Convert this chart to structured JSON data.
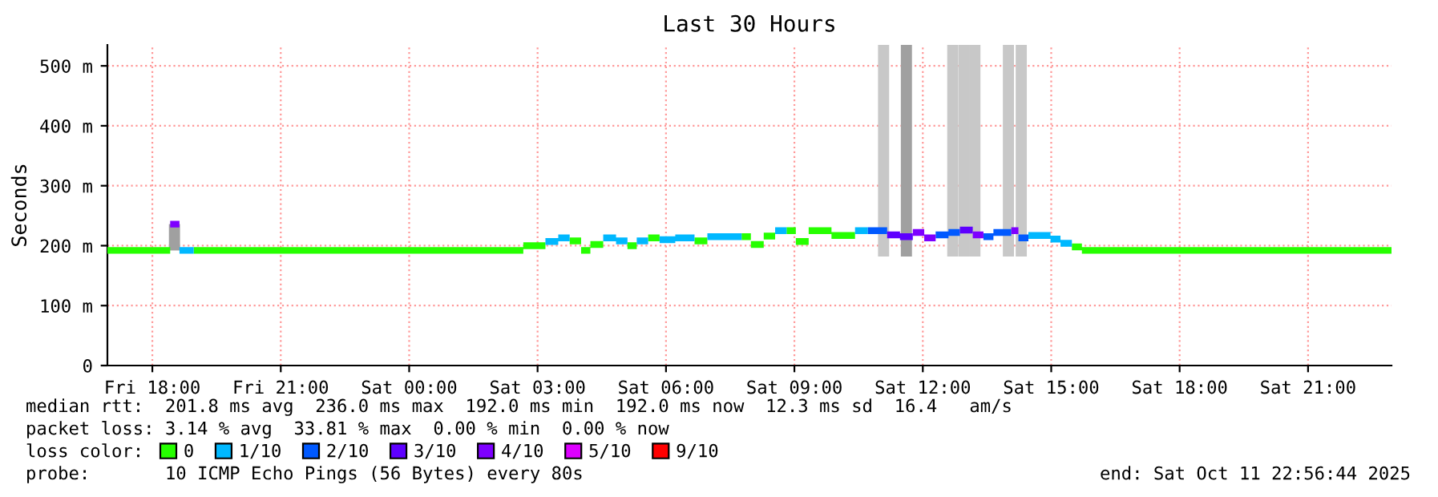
{
  "chart_data": {
    "type": "line",
    "title": "Last 30 Hours",
    "ylabel": "Seconds",
    "xlim": [
      "2025-10-10T16:57",
      "2025-10-11T22:57"
    ],
    "xticks": [
      {
        "value": "2025-10-10T18:00",
        "label": "Fri 18:00"
      },
      {
        "value": "2025-10-10T21:00",
        "label": "Fri 21:00"
      },
      {
        "value": "2025-10-11T00:00",
        "label": "Sat 00:00"
      },
      {
        "value": "2025-10-11T03:00",
        "label": "Sat 03:00"
      },
      {
        "value": "2025-10-11T06:00",
        "label": "Sat 06:00"
      },
      {
        "value": "2025-10-11T09:00",
        "label": "Sat 09:00"
      },
      {
        "value": "2025-10-11T12:00",
        "label": "Sat 12:00"
      },
      {
        "value": "2025-10-11T15:00",
        "label": "Sat 15:00"
      },
      {
        "value": "2025-10-11T18:00",
        "label": "Sat 18:00"
      },
      {
        "value": "2025-10-11T21:00",
        "label": "Sat 21:00"
      }
    ],
    "ylim": [
      0,
      535
    ],
    "yticks": [
      {
        "value": 0,
        "label": "0"
      },
      {
        "value": 100,
        "label": "100 m"
      },
      {
        "value": 200,
        "label": "200 m"
      },
      {
        "value": 300,
        "label": "300 m"
      },
      {
        "value": 400,
        "label": "400 m"
      },
      {
        "value": 500,
        "label": "500 m"
      }
    ],
    "grid": true,
    "legend": "bottom",
    "legend_title": "loss color:",
    "series": [
      {
        "type": "bar",
        "color": "#c8c8c8",
        "x": [
          "2025-10-11T11:05",
          "2025-10-11T12:42",
          "2025-10-11T12:58",
          "2025-10-11T13:13",
          "2025-10-11T14:00",
          "2025-10-11T14:18"
        ],
        "base": [
          182,
          182,
          182,
          182,
          182,
          182
        ],
        "values": [
          353,
          353,
          353,
          353,
          353,
          353
        ]
      },
      {
        "type": "bar",
        "color": "#a0a0a0",
        "x": [
          "2025-10-10T18:31",
          "2025-10-11T11:37"
        ],
        "base": [
          192,
          182
        ],
        "values": [
          44,
          353
        ]
      },
      {
        "name": "0",
        "color": "#26ff00",
        "x": [
          "2025-10-10T16:57",
          "2025-10-10T18:25",
          "2025-10-10T18:58",
          "2025-10-11T02:40",
          "2025-10-11T02:40",
          "2025-10-11T03:11",
          "2025-10-11T03:45",
          "2025-10-11T04:01",
          "2025-10-11T04:01",
          "2025-10-11T04:14",
          "2025-10-11T04:14",
          "2025-10-11T04:32",
          "2025-10-11T05:06",
          "2025-10-11T05:19",
          "2025-10-11T05:35",
          "2025-10-11T05:51",
          "2025-10-11T06:40",
          "2025-10-11T06:58",
          "2025-10-11T07:46",
          "2025-10-11T07:59",
          "2025-10-11T07:59",
          "2025-10-11T08:17",
          "2025-10-11T08:17",
          "2025-10-11T08:33",
          "2025-10-11T08:49",
          "2025-10-11T09:02",
          "2025-10-11T09:02",
          "2025-10-11T09:20",
          "2025-10-11T09:20",
          "2025-10-11T09:52",
          "2025-10-11T09:52",
          "2025-10-11T10:25",
          "2025-10-11T15:29",
          "2025-10-11T15:43",
          "2025-10-11T15:43",
          "2025-10-11T22:57"
        ],
        "values": [
          192,
          192,
          192,
          192,
          200,
          200,
          208,
          208,
          192,
          192,
          202,
          202,
          200,
          200,
          213,
          213,
          208,
          208,
          215,
          215,
          202,
          202,
          216,
          216,
          225,
          225,
          207,
          207,
          225,
          225,
          217,
          217,
          198,
          198,
          192,
          192
        ]
      },
      {
        "name": "1/10",
        "color": "#00b8ff",
        "x": [
          "2025-10-10T18:38",
          "2025-10-10T18:58",
          "2025-10-11T03:11",
          "2025-10-11T03:29",
          "2025-10-11T03:29",
          "2025-10-11T03:45",
          "2025-10-11T04:32",
          "2025-10-11T04:50",
          "2025-10-11T04:50",
          "2025-10-11T05:06",
          "2025-10-11T05:19",
          "2025-10-11T05:35",
          "2025-10-11T05:51",
          "2025-10-11T06:13",
          "2025-10-11T06:13",
          "2025-10-11T06:40",
          "2025-10-11T06:58",
          "2025-10-11T07:46",
          "2025-10-11T08:33",
          "2025-10-11T08:49",
          "2025-10-11T10:25",
          "2025-10-11T10:43",
          "2025-10-11T14:28",
          "2025-10-11T14:59",
          "2025-10-11T14:59",
          "2025-10-11T15:13",
          "2025-10-11T15:13",
          "2025-10-11T15:29"
        ],
        "values": [
          192,
          192,
          207,
          207,
          213,
          213,
          213,
          213,
          208,
          208,
          208,
          208,
          210,
          210,
          213,
          213,
          215,
          215,
          225,
          225,
          225,
          225,
          217,
          217,
          211,
          211,
          204,
          204
        ]
      },
      {
        "name": "2/10",
        "color": "#0059ff",
        "x": [
          "2025-10-11T10:43",
          "2025-10-11T11:10",
          "2025-10-11T12:18",
          "2025-10-11T12:36",
          "2025-10-11T12:36",
          "2025-10-11T12:52",
          "2025-10-11T13:25",
          "2025-10-11T13:39",
          "2025-10-11T13:39",
          "2025-10-11T14:04",
          "2025-10-11T14:14",
          "2025-10-11T14:28"
        ],
        "values": [
          225,
          225,
          218,
          218,
          222,
          222,
          215,
          215,
          222,
          222,
          213,
          213
        ]
      },
      {
        "name": "3/10",
        "color": "#5e00ff",
        "x": [
          "2025-10-11T11:10",
          "2025-10-11T11:28",
          "2025-10-11T11:28",
          "2025-10-11T11:46",
          "2025-10-11T12:52",
          "2025-10-11T13:10"
        ],
        "values": [
          218,
          218,
          215,
          215,
          226,
          226
        ]
      },
      {
        "name": "4/10",
        "color": "#7e00ff",
        "x": [
          "2025-10-10T18:25",
          "2025-10-10T18:38",
          "2025-10-11T11:46",
          "2025-10-11T12:02",
          "2025-10-11T12:02",
          "2025-10-11T12:18",
          "2025-10-11T13:10",
          "2025-10-11T13:25",
          "2025-10-11T14:04",
          "2025-10-11T14:14"
        ],
        "values": [
          236,
          236,
          222,
          222,
          213,
          213,
          218,
          218,
          225,
          225
        ]
      },
      {
        "name": "5/10",
        "color": "#dd00ff"
      },
      {
        "name": "9/10",
        "color": "#ff0000"
      }
    ],
    "annotations": [
      "median rtt:  201.8 ms avg  236.0 ms max  192.0 ms min  192.0 ms now  12.3 ms sd  16.4   am/s",
      "packet loss: 3.14 % avg  33.81 % max  0.00 % min  0.00 % now",
      "probe:       10 ICMP Echo Pings (56 Bytes) every 80s",
      "end: Sat Oct 11 22:56:44 2025"
    ]
  }
}
